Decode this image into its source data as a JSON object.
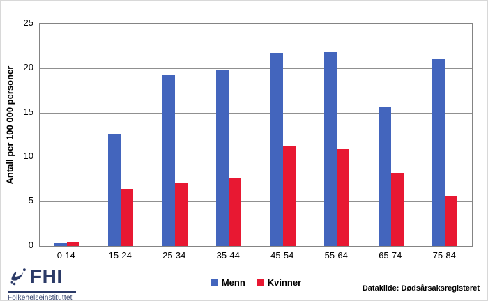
{
  "figure": {
    "y_axis_label": "Antall per 100 000 personer",
    "source_label": "Datakilde: Dødsårsaksregisteret"
  },
  "logo": {
    "acronym": "FHI",
    "name": "Folkehelseinstituttet",
    "color": "#2B3A67"
  },
  "colors": {
    "menn": "#4365BD",
    "kvinner": "#E81832",
    "gridline": "#909090"
  },
  "chart_data": {
    "type": "bar",
    "title": "",
    "categories": [
      "0-14",
      "15-24",
      "25-34",
      "35-44",
      "45-54",
      "55-64",
      "65-74",
      "75-84"
    ],
    "series": [
      {
        "name": "Menn",
        "color": "#4365BD",
        "values": [
          0.3,
          12.6,
          19.2,
          19.8,
          21.7,
          21.9,
          15.7,
          21.1
        ]
      },
      {
        "name": "Kvinner",
        "color": "#E81832",
        "values": [
          0.4,
          6.4,
          7.1,
          7.6,
          11.2,
          10.9,
          8.2,
          5.6
        ]
      }
    ],
    "xlabel": "",
    "ylabel": "Antall per 100 000 personer",
    "ylim": [
      0,
      25
    ],
    "yticks": [
      0,
      5,
      10,
      15,
      20,
      25
    ],
    "grid": true,
    "legend_position": "bottom",
    "source": "Datakilde: Dødsårsaksregisteret"
  }
}
